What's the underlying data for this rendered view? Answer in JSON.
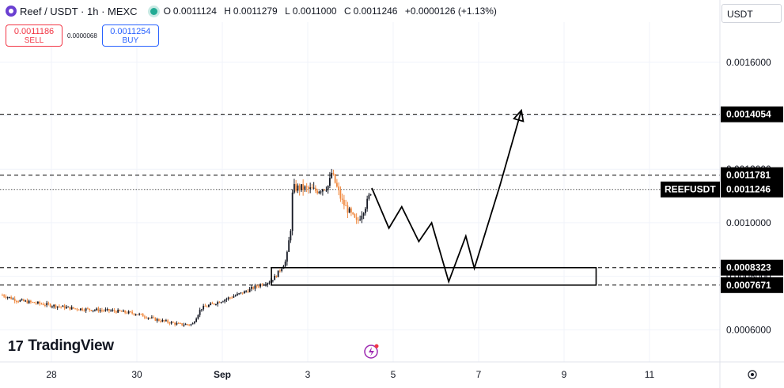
{
  "header": {
    "symbol": "Reef / USDT · 1h · MEXC",
    "ohlc": {
      "open_label": "O",
      "open": "0.0011124",
      "high_label": "H",
      "high": "0.0011279",
      "low_label": "L",
      "low": "0.0011000",
      "close_label": "C",
      "close": "0.0011246",
      "change": "+0.0000126 (+1.13%)"
    }
  },
  "trade": {
    "sell_price": "0.0011186",
    "sell_label": "SELL",
    "spread": "0.0000068",
    "buy_price": "0.0011254",
    "buy_label": "BUY"
  },
  "currency": "USDT",
  "brand": "TradingView",
  "colors": {
    "up": "#131722",
    "down": "#f0883e",
    "box": "#000000",
    "tag_bg": "#000000"
  },
  "chart_data": {
    "type": "candlestick",
    "title": "Reef / USDT · 1h · MEXC",
    "y_axis": {
      "ticks": [
        0.0016,
        0.0014,
        0.0012,
        0.001,
        0.0008,
        0.0006
      ],
      "tick_labels": [
        "0.0016000",
        "0.0014000",
        "0.0012000",
        "0.0010000",
        "0.0008000",
        "0.0006000"
      ],
      "range": [
        0.00048,
        0.00175
      ]
    },
    "x_axis": {
      "ticks": [
        "28",
        "30",
        "Sep",
        "3",
        "5",
        "7",
        "9",
        "11"
      ],
      "tick_positions_days": [
        0,
        2,
        4,
        6,
        8,
        10,
        12,
        14
      ]
    },
    "price_levels": [
      {
        "label": "0.0014054",
        "value": 0.0014054,
        "style": "dashed"
      },
      {
        "label": "0.0011781",
        "value": 0.0011781,
        "style": "dashed"
      },
      {
        "label": "0.0011246",
        "value": 0.0011246,
        "style": "dotted",
        "name": "REEFUSDT"
      },
      {
        "label": "0.0008323",
        "value": 0.0008323,
        "style": "dashed"
      },
      {
        "label": "0.0007671",
        "value": 0.0007671,
        "style": "dashed"
      }
    ],
    "zone": {
      "from_day": 5.15,
      "to_day": 12.75,
      "low": 0.0007671,
      "high": 0.0008323
    },
    "price_path": [
      [
        -1.15,
        0.00073
      ],
      [
        -0.8,
        0.00071
      ],
      [
        0.5,
        0.00068
      ],
      [
        1.5,
        0.00067
      ],
      [
        2.0,
        0.00066
      ],
      [
        2.4,
        0.00064
      ],
      [
        3.0,
        0.00062
      ],
      [
        3.3,
        0.00062
      ],
      [
        3.5,
        0.00068
      ],
      [
        4.0,
        0.00071
      ],
      [
        4.5,
        0.00074
      ],
      [
        4.9,
        0.00077
      ],
      [
        5.1,
        0.00078
      ],
      [
        5.25,
        0.0008
      ],
      [
        5.5,
        0.00086
      ],
      [
        5.6,
        0.00098
      ],
      [
        5.65,
        0.00113
      ],
      [
        5.85,
        0.00113
      ],
      [
        6.2,
        0.00112
      ],
      [
        6.5,
        0.00114
      ],
      [
        6.55,
        0.00119
      ],
      [
        6.8,
        0.00108
      ],
      [
        7.15,
        0.001
      ],
      [
        7.4,
        0.00108
      ],
      [
        7.5,
        0.00113
      ]
    ],
    "projection": [
      [
        7.5,
        0.00113
      ],
      [
        7.9,
        0.00098
      ],
      [
        8.2,
        0.00106
      ],
      [
        8.6,
        0.00093
      ],
      [
        8.9,
        0.001
      ],
      [
        9.3,
        0.00078
      ],
      [
        9.7,
        0.00095
      ],
      [
        9.9,
        0.00083
      ],
      [
        10.5,
        0.00114
      ],
      [
        11.0,
        0.00142
      ]
    ]
  }
}
